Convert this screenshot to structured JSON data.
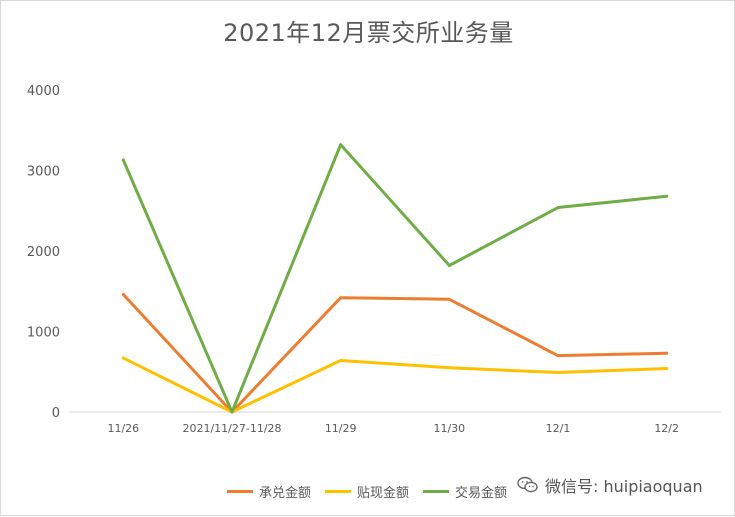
{
  "chart_data": {
    "type": "line",
    "title": "2021年12月票交所业务量",
    "categories": [
      "11/26",
      "2021/11/27-11/28",
      "11/29",
      "11/30",
      "12/1",
      "12/2"
    ],
    "ylim": [
      0,
      4000
    ],
    "yticks": [
      "0",
      "1000",
      "2000",
      "3000",
      "4000"
    ],
    "grid": false,
    "legend_position": "bottom",
    "series": [
      {
        "name": "承兑金额",
        "color": "#ed7d31",
        "values": [
          1460,
          0,
          1420,
          1400,
          700,
          730
        ]
      },
      {
        "name": "贴现金额",
        "color": "#ffc000",
        "values": [
          670,
          0,
          640,
          550,
          490,
          540
        ]
      },
      {
        "name": "交易金额",
        "color": "#70ad47",
        "values": [
          3130,
          0,
          3320,
          1820,
          2540,
          2680
        ]
      }
    ]
  },
  "watermark": {
    "text": "微信号: huipiaoquan",
    "icon": "wechat-icon"
  }
}
